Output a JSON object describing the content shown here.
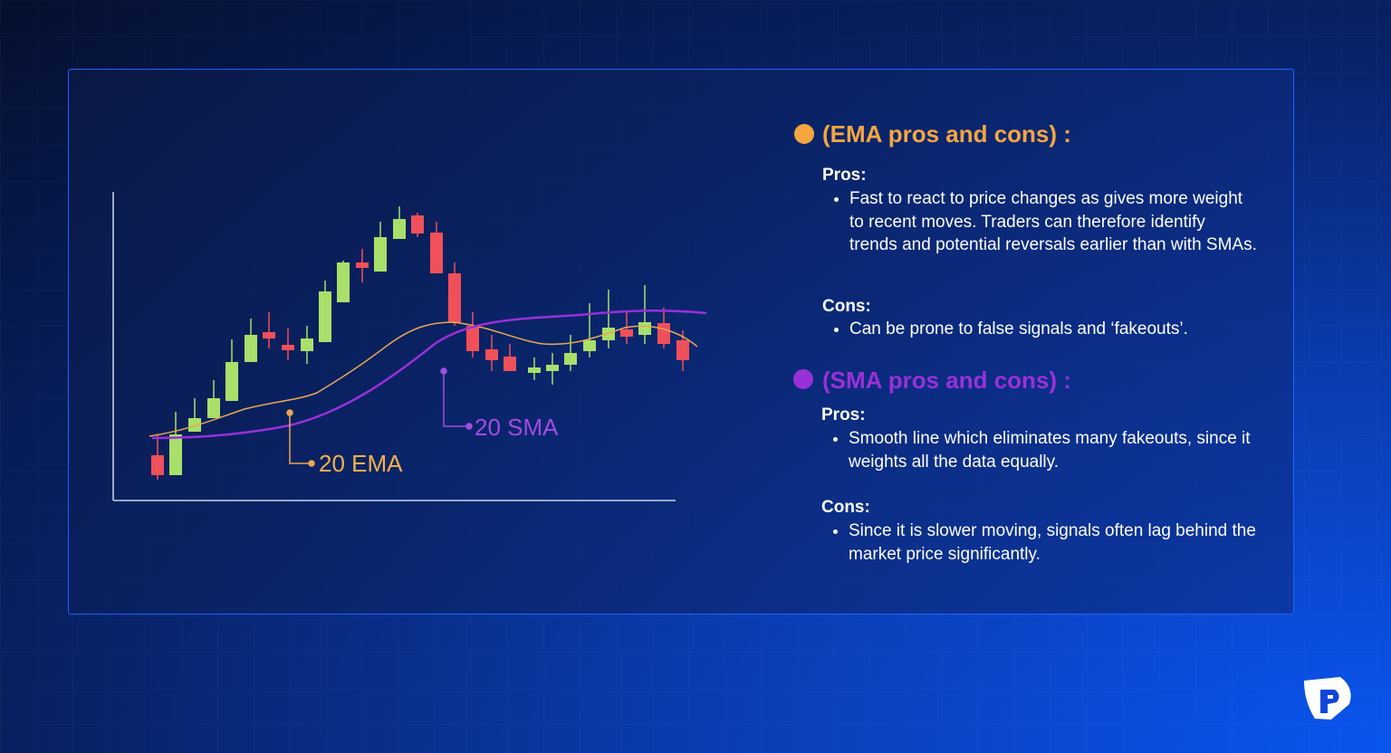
{
  "ema": {
    "title": "(EMA pros and cons) :",
    "pros_label": "Pros:",
    "pros": [
      "Fast to react to price changes as gives more weight to recent moves. Traders can therefore identify trends and potential reversals earlier than with SMAs."
    ],
    "cons_label": "Cons:",
    "cons": [
      "Can be prone to false signals and ‘fakeouts’."
    ]
  },
  "sma": {
    "title": "(SMA pros and cons) :",
    "pros_label": "Pros:",
    "pros": [
      "Smooth line which eliminates many fakeouts, since it weights all the data equally."
    ],
    "cons_label": "Cons:",
    "cons": [
      "Since it is slower moving, signals often lag behind the market price significantly."
    ]
  },
  "chart_labels": {
    "ema": "20 EMA",
    "sma": "20 SMA"
  }
}
